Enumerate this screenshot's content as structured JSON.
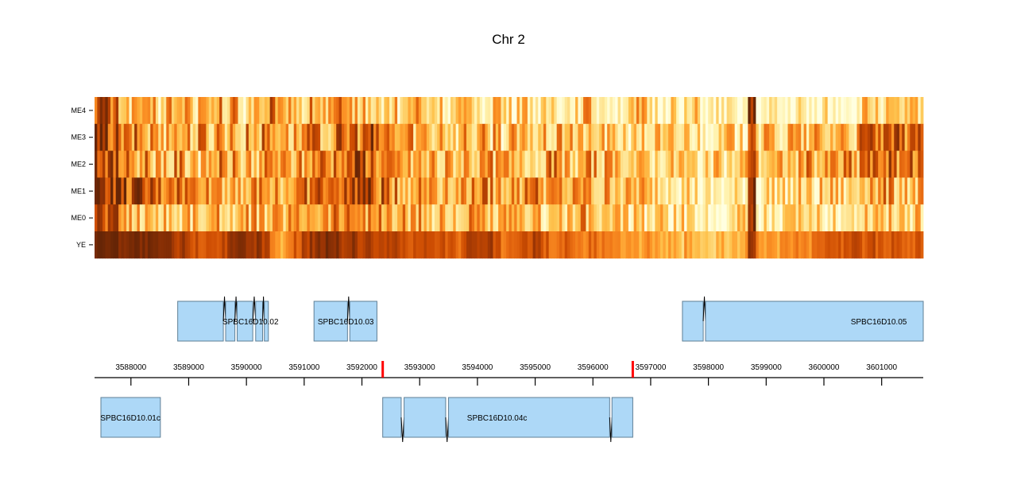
{
  "chart_data": {
    "type": "heatmap",
    "title": "Chr 2",
    "xlabel": "",
    "ylabel": "",
    "color_scale": {
      "low": "#ffffe0",
      "stops": [
        "#ffffe0",
        "#fff3b0",
        "#fee391",
        "#fec44f",
        "#fe9929",
        "#ec7014",
        "#cc4c02",
        "#993404",
        "#662506"
      ],
      "high": "#662506"
    },
    "x_range": [
      3587370,
      3601720
    ],
    "x_ticks": [
      3588000,
      3589000,
      3590000,
      3591000,
      3592000,
      3593000,
      3594000,
      3595000,
      3596000,
      3597000,
      3598000,
      3599000,
      3600000,
      3601000
    ],
    "x_tick_labels": [
      "3588000",
      "3589000",
      "3590000",
      "3591000",
      "3592000",
      "3593000",
      "3594000",
      "3595000",
      "3596000",
      "3597000",
      "3598000",
      "3599000",
      "3600000",
      "3601000"
    ],
    "markers": [
      {
        "position": 3592360,
        "color": "#ff0000"
      },
      {
        "position": 3596690,
        "color": "#ff0000"
      }
    ],
    "rows": [
      "ME4",
      "ME3",
      "ME2",
      "ME1",
      "ME0",
      "YE"
    ],
    "bins": 104,
    "values": {
      "ME4": [
        0.8,
        0.75,
        0.6,
        0.5,
        0.35,
        0.5,
        0.3,
        0.45,
        0.25,
        0.5,
        0.35,
        0.55,
        0.3,
        0.4,
        0.25,
        0.5,
        0.3,
        0.55,
        0.2,
        0.4,
        0.5,
        0.25,
        0.6,
        0.3,
        0.55,
        0.4,
        0.3,
        0.5,
        0.45,
        0.35,
        0.55,
        0.3,
        0.5,
        0.35,
        0.4,
        0.25,
        0.3,
        0.35,
        0.2,
        0.4,
        0.5,
        0.25,
        0.35,
        0.3,
        0.2,
        0.3,
        0.25,
        0.35,
        0.2,
        0.3,
        0.45,
        0.25,
        0.2,
        0.4,
        0.3,
        0.2,
        0.15,
        0.3,
        0.25,
        0.2,
        0.3,
        0.45,
        0.35,
        0.2,
        0.3,
        0.15,
        0.25,
        0.2,
        0.35,
        0.25,
        0.15,
        0.2,
        0.3,
        0.1,
        0.15,
        0.25,
        0.05,
        0.05,
        0.1,
        0.05,
        0.05,
        0.1,
        0.9,
        0.05,
        0.05,
        0.1,
        0.05,
        0.05,
        0.15,
        0.05,
        0.05,
        0.2,
        0.05,
        0.1,
        0.15,
        0.05,
        0.3,
        0.35,
        0.3,
        0.25,
        0.2,
        0.3,
        0.25,
        0.35
      ],
      "ME3": [
        0.85,
        0.75,
        0.7,
        0.55,
        0.5,
        0.6,
        0.45,
        0.55,
        0.35,
        0.6,
        0.45,
        0.5,
        0.4,
        0.55,
        0.35,
        0.6,
        0.45,
        0.5,
        0.3,
        0.55,
        0.45,
        0.6,
        0.5,
        0.55,
        0.4,
        0.45,
        0.55,
        0.6,
        0.5,
        0.4,
        0.65,
        0.55,
        0.7,
        0.6,
        0.75,
        0.55,
        0.6,
        0.5,
        0.45,
        0.55,
        0.4,
        0.5,
        0.35,
        0.55,
        0.4,
        0.3,
        0.5,
        0.35,
        0.45,
        0.3,
        0.5,
        0.25,
        0.4,
        0.3,
        0.45,
        0.25,
        0.35,
        0.3,
        0.4,
        0.55,
        0.3,
        0.35,
        0.25,
        0.4,
        0.3,
        0.25,
        0.35,
        0.2,
        0.3,
        0.25,
        0.35,
        0.2,
        0.3,
        0.25,
        0.35,
        0.25,
        0.2,
        0.3,
        0.15,
        0.35,
        0.25,
        0.2,
        0.9,
        0.3,
        0.35,
        0.4,
        0.25,
        0.45,
        0.35,
        0.3,
        0.45,
        0.3,
        0.4,
        0.5,
        0.45,
        0.35,
        0.65,
        0.7,
        0.6,
        0.55,
        0.65,
        0.6,
        0.8,
        0.6
      ],
      "ME2": [
        0.85,
        0.8,
        0.7,
        0.6,
        0.55,
        0.45,
        0.6,
        0.4,
        0.5,
        0.35,
        0.55,
        0.4,
        0.5,
        0.3,
        0.45,
        0.55,
        0.4,
        0.5,
        0.35,
        0.45,
        0.3,
        0.5,
        0.55,
        0.45,
        0.4,
        0.5,
        0.45,
        0.6,
        0.65,
        0.55,
        0.7,
        0.6,
        0.75,
        0.8,
        0.7,
        0.6,
        0.55,
        0.45,
        0.5,
        0.4,
        0.45,
        0.35,
        0.5,
        0.3,
        0.45,
        0.4,
        0.5,
        0.45,
        0.35,
        0.5,
        0.4,
        0.45,
        0.35,
        0.5,
        0.4,
        0.3,
        0.45,
        0.55,
        0.35,
        0.4,
        0.3,
        0.45,
        0.5,
        0.35,
        0.4,
        0.3,
        0.45,
        0.35,
        0.3,
        0.4,
        0.25,
        0.35,
        0.3,
        0.4,
        0.25,
        0.3,
        0.2,
        0.25,
        0.3,
        0.2,
        0.3,
        0.35,
        0.9,
        0.35,
        0.4,
        0.3,
        0.45,
        0.35,
        0.4,
        0.5,
        0.45,
        0.4,
        0.5,
        0.45,
        0.55,
        0.4,
        0.7,
        0.6,
        0.65,
        0.7,
        0.55,
        0.65,
        0.6,
        0.55
      ],
      "ME1": [
        0.95,
        0.9,
        0.85,
        0.8,
        0.7,
        0.75,
        0.65,
        0.7,
        0.6,
        0.75,
        0.65,
        0.6,
        0.55,
        0.65,
        0.5,
        0.6,
        0.45,
        0.55,
        0.5,
        0.4,
        0.55,
        0.45,
        0.6,
        0.4,
        0.5,
        0.55,
        0.6,
        0.65,
        0.7,
        0.55,
        0.75,
        0.65,
        0.8,
        0.85,
        0.75,
        0.6,
        0.65,
        0.55,
        0.5,
        0.45,
        0.55,
        0.5,
        0.6,
        0.45,
        0.55,
        0.4,
        0.55,
        0.5,
        0.6,
        0.55,
        0.45,
        0.5,
        0.55,
        0.45,
        0.75,
        0.6,
        0.5,
        0.45,
        0.5,
        0.4,
        0.45,
        0.55,
        0.4,
        0.35,
        0.45,
        0.5,
        0.35,
        0.4,
        0.45,
        0.3,
        0.35,
        0.3,
        0.4,
        0.25,
        0.3,
        0.2,
        0.1,
        0.1,
        0.15,
        0.1,
        0.15,
        0.2,
        0.95,
        0.2,
        0.25,
        0.3,
        0.2,
        0.25,
        0.3,
        0.25,
        0.2,
        0.3,
        0.35,
        0.3,
        0.25,
        0.3,
        0.5,
        0.55,
        0.45,
        0.5,
        0.4,
        0.45,
        0.35,
        0.4
      ],
      "ME0": [
        0.8,
        0.75,
        0.7,
        0.55,
        0.45,
        0.4,
        0.35,
        0.45,
        0.35,
        0.4,
        0.3,
        0.45,
        0.35,
        0.4,
        0.3,
        0.45,
        0.4,
        0.35,
        0.3,
        0.4,
        0.45,
        0.35,
        0.4,
        0.45,
        0.5,
        0.45,
        0.55,
        0.6,
        0.5,
        0.55,
        0.6,
        0.55,
        0.65,
        0.6,
        0.55,
        0.5,
        0.45,
        0.4,
        0.5,
        0.35,
        0.45,
        0.4,
        0.35,
        0.45,
        0.3,
        0.4,
        0.35,
        0.45,
        0.4,
        0.35,
        0.3,
        0.4,
        0.35,
        0.3,
        0.45,
        0.35,
        0.3,
        0.35,
        0.4,
        0.3,
        0.35,
        0.45,
        0.3,
        0.35,
        0.25,
        0.35,
        0.3,
        0.25,
        0.35,
        0.2,
        0.3,
        0.25,
        0.2,
        0.3,
        0.15,
        0.2,
        0.15,
        0.1,
        0.2,
        0.15,
        0.25,
        0.45,
        0.9,
        0.2,
        0.25,
        0.15,
        0.2,
        0.25,
        0.2,
        0.15,
        0.25,
        0.2,
        0.3,
        0.25,
        0.2,
        0.25,
        0.4,
        0.35,
        0.45,
        0.3,
        0.35,
        0.4,
        0.3,
        0.35
      ],
      "YE": [
        1.0,
        1.0,
        0.98,
        0.97,
        0.96,
        0.95,
        0.93,
        0.9,
        0.92,
        0.88,
        0.8,
        0.85,
        0.75,
        0.7,
        0.78,
        0.72,
        0.8,
        0.85,
        0.9,
        0.82,
        0.88,
        0.8,
        0.55,
        0.45,
        0.6,
        0.7,
        0.82,
        0.88,
        0.92,
        0.95,
        0.9,
        0.85,
        0.88,
        0.8,
        0.85,
        0.75,
        0.78,
        0.82,
        0.75,
        0.7,
        0.8,
        0.78,
        0.72,
        0.75,
        0.7,
        0.65,
        0.78,
        0.8,
        0.75,
        0.85,
        0.7,
        0.6,
        0.65,
        0.7,
        0.75,
        0.8,
        0.7,
        0.6,
        0.65,
        0.7,
        0.62,
        0.55,
        0.65,
        0.6,
        0.55,
        0.6,
        0.5,
        0.55,
        0.45,
        0.55,
        0.5,
        0.4,
        0.45,
        0.35,
        0.5,
        0.4,
        0.35,
        0.3,
        0.45,
        0.35,
        0.4,
        0.5,
        0.9,
        0.55,
        0.5,
        0.45,
        0.55,
        0.5,
        0.6,
        0.55,
        0.65,
        0.7,
        0.75,
        0.7,
        0.72,
        0.75,
        0.7,
        0.75,
        0.7,
        0.72,
        0.75,
        0.7,
        0.68,
        0.72
      ]
    },
    "genes": [
      {
        "name": "SPBC16D10.02",
        "strand": "+",
        "label_position": 3590070,
        "exons": [
          [
            3588810,
            3589600
          ],
          [
            3589640,
            3589800
          ],
          [
            3589840,
            3590110
          ],
          [
            3590160,
            3590280
          ],
          [
            3590310,
            3590380
          ]
        ]
      },
      {
        "name": "SPBC16D10.03",
        "strand": "+",
        "label_position": 3591720,
        "exons": [
          [
            3591170,
            3591750
          ],
          [
            3591790,
            3592260
          ]
        ]
      },
      {
        "name": "SPBC16D10.05",
        "strand": "+",
        "label_position": 3600950,
        "exons": [
          [
            3597550,
            3597910
          ],
          [
            3597950,
            3601720
          ]
        ]
      },
      {
        "name": "SPBC16D10.01c",
        "strand": "-",
        "label_position": 3587990,
        "exons": [
          [
            3587480,
            3588510
          ]
        ]
      },
      {
        "name": "SPBC16D10.04c",
        "strand": "-",
        "label_position": 3594340,
        "exons": [
          [
            3592360,
            3592680
          ],
          [
            3592730,
            3593450
          ],
          [
            3593500,
            3596290
          ],
          [
            3596330,
            3596690
          ]
        ]
      }
    ]
  }
}
